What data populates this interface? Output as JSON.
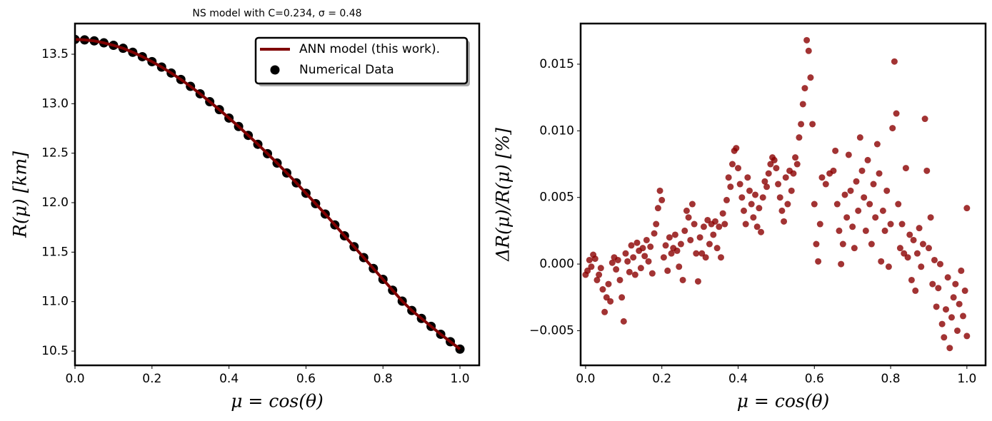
{
  "chart_data": [
    {
      "type": "line",
      "title": "NS model with C=0.234, σ = 0.48",
      "x_label": "μ = cos(θ)",
      "y_label": "R(μ) [km]",
      "x": [
        0,
        0.025,
        0.05,
        0.075,
        0.1,
        0.125,
        0.15,
        0.175,
        0.2,
        0.225,
        0.25,
        0.275,
        0.3,
        0.325,
        0.35,
        0.375,
        0.4,
        0.425,
        0.45,
        0.475,
        0.5,
        0.525,
        0.55,
        0.575,
        0.6,
        0.625,
        0.65,
        0.675,
        0.7,
        0.725,
        0.75,
        0.775,
        0.8,
        0.825,
        0.85,
        0.875,
        0.9,
        0.925,
        0.95,
        0.975,
        1.0
      ],
      "series": [
        {
          "name": "ANN model (this work).",
          "kind": "line",
          "color": "#7f0000",
          "values": [
            13.65,
            13.645,
            13.635,
            13.615,
            13.59,
            13.56,
            13.52,
            13.475,
            13.425,
            13.37,
            13.31,
            13.245,
            13.175,
            13.1,
            13.02,
            12.94,
            12.855,
            12.77,
            12.68,
            12.59,
            12.495,
            12.4,
            12.3,
            12.2,
            12.095,
            11.99,
            11.885,
            11.775,
            11.665,
            11.555,
            11.445,
            11.335,
            11.225,
            11.115,
            11.005,
            10.91,
            10.83,
            10.75,
            10.67,
            10.595,
            10.52
          ]
        },
        {
          "name": "Numerical Data",
          "kind": "scatter",
          "color": "#000000",
          "values": [
            13.65,
            13.645,
            13.635,
            13.615,
            13.59,
            13.56,
            13.52,
            13.475,
            13.425,
            13.37,
            13.31,
            13.245,
            13.175,
            13.1,
            13.02,
            12.94,
            12.855,
            12.77,
            12.68,
            12.59,
            12.495,
            12.4,
            12.3,
            12.2,
            12.095,
            11.99,
            11.885,
            11.775,
            11.665,
            11.555,
            11.445,
            11.335,
            11.225,
            11.115,
            11.005,
            10.91,
            10.83,
            10.75,
            10.67,
            10.595,
            10.52
          ]
        }
      ],
      "xlim": [
        0,
        1.05
      ],
      "xticks": [
        {
          "value": 0,
          "label": "0.0"
        },
        0.2,
        0.4,
        0.6,
        0.8,
        {
          "value": 1,
          "label": "1.0"
        }
      ],
      "ylim": [
        10.356,
        13.81
      ],
      "yticks": [
        10.5,
        {
          "value": 11,
          "label": "11.0"
        },
        11.5,
        {
          "value": 12,
          "label": "12.0"
        },
        12.5,
        {
          "value": 13,
          "label": "13.0"
        },
        13.5
      ],
      "legend": "upper right"
    },
    {
      "type": "scatter",
      "x_label": "μ = cos(θ)",
      "y_label": "ΔR(μ)/R(μ) [%]",
      "color": "#8b0000",
      "x": [
        0,
        0.005,
        0.01,
        0.015,
        0.02,
        0.025,
        0.03,
        0.035,
        0.04,
        0.045,
        0.05,
        0.055,
        0.06,
        0.065,
        0.07,
        0.075,
        0.08,
        0.085,
        0.09,
        0.095,
        0.1,
        0.105,
        0.11,
        0.115,
        0.12,
        0.125,
        0.13,
        0.135,
        0.14,
        0.145,
        0.15,
        0.155,
        0.16,
        0.165,
        0.17,
        0.175,
        0.18,
        0.185,
        0.19,
        0.195,
        0.2,
        0.205,
        0.21,
        0.215,
        0.22,
        0.225,
        0.23,
        0.235,
        0.24,
        0.245,
        0.25,
        0.255,
        0.26,
        0.265,
        0.27,
        0.275,
        0.28,
        0.285,
        0.29,
        0.295,
        0.3,
        0.305,
        0.31,
        0.315,
        0.32,
        0.325,
        0.33,
        0.335,
        0.34,
        0.345,
        0.35,
        0.355,
        0.36,
        0.365,
        0.37,
        0.375,
        0.38,
        0.385,
        0.39,
        0.395,
        0.4,
        0.405,
        0.41,
        0.415,
        0.42,
        0.425,
        0.43,
        0.435,
        0.44,
        0.445,
        0.45,
        0.455,
        0.46,
        0.465,
        0.47,
        0.475,
        0.48,
        0.485,
        0.49,
        0.495,
        0.5,
        0.505,
        0.51,
        0.515,
        0.52,
        0.525,
        0.53,
        0.535,
        0.54,
        0.545,
        0.55,
        0.555,
        0.56,
        0.565,
        0.57,
        0.575,
        0.58,
        0.585,
        0.59,
        0.595,
        0.6,
        0.605,
        0.61,
        0.615,
        0.62,
        0.63,
        0.64,
        0.65,
        0.655,
        0.66,
        0.665,
        0.67,
        0.675,
        0.68,
        0.685,
        0.69,
        0.695,
        0.7,
        0.705,
        0.71,
        0.715,
        0.72,
        0.725,
        0.73,
        0.735,
        0.74,
        0.745,
        0.75,
        0.755,
        0.76,
        0.765,
        0.77,
        0.775,
        0.78,
        0.785,
        0.79,
        0.795,
        0.8,
        0.805,
        0.81,
        0.815,
        0.82,
        0.825,
        0.83,
        0.835,
        0.84,
        0.845,
        0.85,
        0.855,
        0.86,
        0.865,
        0.87,
        0.875,
        0.88,
        0.885,
        0.89,
        0.895,
        0.9,
        0.905,
        0.91,
        0.915,
        0.92,
        0.925,
        0.93,
        0.935,
        0.94,
        0.945,
        0.95,
        0.955,
        0.96,
        0.965,
        0.97,
        0.975,
        0.98,
        0.985,
        0.99,
        0.995,
        1.0,
        1.0
      ],
      "values": [
        -0.0008,
        -0.0005,
        0.0003,
        -0.0002,
        0.0007,
        0.0004,
        -0.0012,
        -0.0008,
        -0.0003,
        -0.0019,
        -0.0036,
        -0.0025,
        -0.0015,
        -0.0028,
        0.0001,
        0.0005,
        -0.0004,
        0.0003,
        -0.0012,
        -0.0025,
        -0.0043,
        0.0008,
        0.0002,
        -0.0006,
        0.0014,
        0.0005,
        -0.0008,
        0.0016,
        0.001,
        -0.0003,
        0.0012,
        0.0006,
        0.0018,
        0.0002,
        0.0013,
        -0.0007,
        0.0023,
        0.003,
        0.0042,
        0.0055,
        0.0048,
        0.0005,
        0.0014,
        -0.0005,
        0.002,
        0.0008,
        0.0012,
        0.0022,
        0.001,
        -0.0002,
        0.0015,
        -0.0012,
        0.0025,
        0.004,
        0.0035,
        0.0018,
        0.0045,
        0.003,
        0.0008,
        -0.0013,
        0.002,
        0.0008,
        0.0028,
        0.0005,
        0.0033,
        0.0015,
        0.003,
        0.0022,
        0.0032,
        0.0012,
        0.0028,
        0.0005,
        0.0038,
        0.003,
        0.0048,
        0.0065,
        0.0058,
        0.0075,
        0.0085,
        0.0087,
        0.0072,
        0.006,
        0.005,
        0.004,
        0.003,
        0.0065,
        0.0055,
        0.0045,
        0.0035,
        0.0052,
        0.0028,
        0.0042,
        0.0024,
        0.005,
        0.0062,
        0.0058,
        0.0068,
        0.0075,
        0.008,
        0.0078,
        0.0072,
        0.006,
        0.005,
        0.004,
        0.0032,
        0.0065,
        0.0045,
        0.007,
        0.0055,
        0.0068,
        0.008,
        0.0075,
        0.0095,
        0.0105,
        0.012,
        0.0132,
        0.0168,
        0.016,
        0.014,
        0.0105,
        0.0045,
        0.0015,
        0.0002,
        0.003,
        0.0065,
        0.006,
        0.0068,
        0.007,
        0.0085,
        0.0045,
        0.0025,
        0.0,
        0.0015,
        0.0052,
        0.0035,
        0.0082,
        0.0055,
        0.0028,
        0.0012,
        0.0062,
        0.004,
        0.0095,
        0.007,
        0.005,
        0.0025,
        0.0078,
        0.0045,
        0.0015,
        0.006,
        0.0035,
        0.009,
        0.0068,
        0.0002,
        0.004,
        0.0025,
        0.0055,
        -0.0002,
        0.003,
        0.0102,
        0.0152,
        0.0113,
        0.0045,
        0.0012,
        0.003,
        0.0008,
        0.0072,
        0.0005,
        0.0022,
        -0.0012,
        0.0018,
        -0.002,
        0.0008,
        0.0027,
        -0.0002,
        0.0015,
        0.0109,
        0.007,
        0.0012,
        0.0035,
        -0.0015,
        0.0003,
        -0.0032,
        -0.0018,
        0.0,
        -0.0045,
        -0.0055,
        -0.0034,
        -0.001,
        -0.0063,
        -0.004,
        -0.0025,
        -0.0015,
        -0.005,
        -0.003,
        -0.0005,
        -0.0039,
        -0.002,
        0.0042,
        -0.0054
      ],
      "xlim": [
        -0.013,
        1.049
      ],
      "xticks": [
        {
          "value": 0,
          "label": "0.0"
        },
        0.2,
        0.4,
        0.6,
        0.8,
        {
          "value": 1,
          "label": "1.0"
        }
      ],
      "ylim": [
        -0.0076,
        0.01805
      ],
      "yticks": [
        {
          "value": -0.005,
          "label": "−0.005"
        },
        {
          "value": 0,
          "label": "0.000"
        },
        0.005,
        {
          "value": 0.01,
          "label": "0.010"
        },
        0.015
      ]
    }
  ]
}
